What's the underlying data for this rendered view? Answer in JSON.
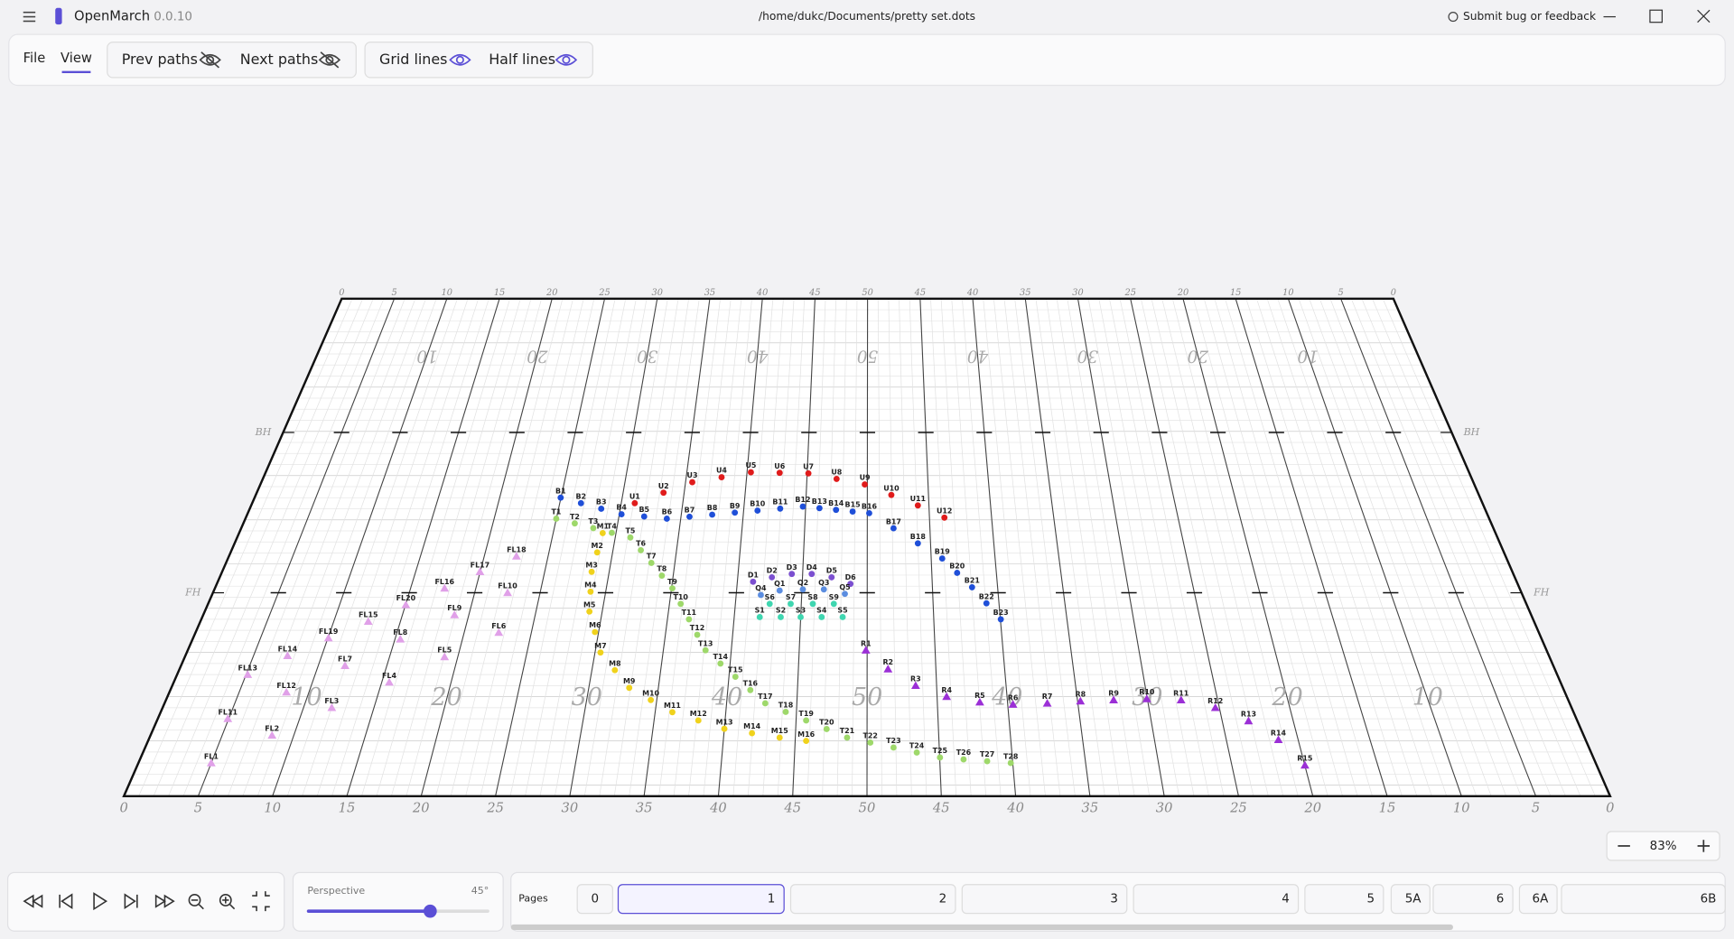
{
  "header": {
    "app_name": "OpenMarch",
    "version": "0.0.10",
    "file_path": "/home/dukc/Documents/pretty set.dots",
    "feedback": "Submit bug or feedback"
  },
  "menu": [
    "File",
    "View"
  ],
  "toggles": [
    "Prev paths",
    "Next paths",
    "Grid lines",
    "Half lines"
  ],
  "field": {
    "top_labels": [
      "0",
      "5",
      "10",
      "15",
      "20",
      "25",
      "30",
      "35",
      "40",
      "45",
      "50",
      "45",
      "40",
      "35",
      "30",
      "25",
      "20",
      "15",
      "10",
      "5",
      "0"
    ],
    "bottom_labels": [
      "0",
      "5",
      "10",
      "15",
      "20",
      "25",
      "30",
      "35",
      "40",
      "45",
      "50",
      "45",
      "40",
      "35",
      "30",
      "25",
      "20",
      "15",
      "10",
      "5",
      "0"
    ],
    "yard_numbers": [
      "10",
      "20",
      "30",
      "40",
      "50",
      "40",
      "30",
      "20",
      "10"
    ],
    "hashes": [
      "BH",
      "FH"
    ]
  },
  "marchers": [
    {
      "color": "#e01b1b",
      "shape": "dot",
      "labels": [
        "U1",
        "U2",
        "U3",
        "U4",
        "U5",
        "U6",
        "U7",
        "U8",
        "U9",
        "U10",
        "U11",
        "U12"
      ]
    },
    {
      "color": "#1f4fd8",
      "shape": "dot",
      "labels": [
        "B1",
        "B2",
        "B3",
        "B4",
        "B5",
        "B6",
        "B7",
        "B8",
        "B9",
        "B10",
        "B11",
        "B12",
        "B13",
        "B14",
        "B15",
        "B16",
        "B17",
        "B18",
        "B19",
        "B20",
        "B21",
        "B22",
        "B23"
      ]
    },
    {
      "color": "#9ed86a",
      "shape": "dot",
      "labels": [
        "T1",
        "T2",
        "T3",
        "T4",
        "T5",
        "T6",
        "T7",
        "T8",
        "T9",
        "T10",
        "T11",
        "T12",
        "T13",
        "T14",
        "T15",
        "T16",
        "T17",
        "T18",
        "T19",
        "T20",
        "T21",
        "T22",
        "T23",
        "T24",
        "T25",
        "T26",
        "T27",
        "T28"
      ]
    },
    {
      "color": "#f0d21c",
      "shape": "dot",
      "labels": [
        "M1",
        "M2",
        "M3",
        "M4",
        "M5",
        "M6",
        "M7",
        "M8",
        "M9",
        "M10",
        "M11",
        "M12",
        "M13",
        "M14",
        "M15",
        "M16"
      ]
    },
    {
      "color": "#7b4fd0",
      "shape": "dot",
      "labels": [
        "D1",
        "D2",
        "D3",
        "D4",
        "D5",
        "D6"
      ]
    },
    {
      "color": "#5b8de0",
      "shape": "dot",
      "labels": [
        "Q1",
        "Q2",
        "Q3",
        "Q4",
        "Q5"
      ]
    },
    {
      "color": "#3fd6b0",
      "shape": "dot",
      "labels": [
        "S1",
        "S2",
        "S3",
        "S4",
        "S5",
        "S6",
        "S7",
        "S8",
        "S9"
      ]
    },
    {
      "color": "#9b2fd6",
      "shape": "triangle",
      "labels": [
        "R1",
        "R2",
        "R3",
        "R4",
        "R5",
        "R6",
        "R7",
        "R8",
        "R9",
        "R10",
        "R11",
        "R12",
        "R13",
        "R14",
        "R15"
      ]
    },
    {
      "color": "#e0a0e8",
      "shape": "triangle",
      "labels": [
        "FL1",
        "FL2",
        "FL3",
        "FL4",
        "FL5",
        "FL6",
        "FL7",
        "FL8",
        "FL9",
        "FL10",
        "FL11",
        "FL12",
        "FL13",
        "FL14",
        "FL15",
        "FL16",
        "FL17",
        "FL18",
        "FL19",
        "FL20"
      ]
    }
  ],
  "zoom": "83%",
  "perspective": {
    "label": "Perspective",
    "value": "45°"
  },
  "pages": {
    "label": "Pages",
    "items": [
      "0",
      "1",
      "2",
      "3",
      "4",
      "5",
      "5A",
      "6",
      "6A",
      "6B"
    ]
  }
}
